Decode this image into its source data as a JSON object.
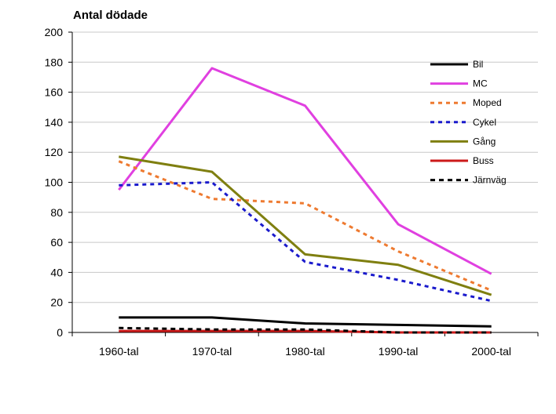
{
  "chart_data": {
    "type": "line",
    "ylabel": "Antal dödade",
    "xlabel": "",
    "categories": [
      "1960-tal",
      "1970-tal",
      "1980-tal",
      "1990-tal",
      "2000-tal"
    ],
    "ylim": [
      0,
      200
    ],
    "yticks": [
      0,
      20,
      40,
      60,
      80,
      100,
      120,
      140,
      160,
      180,
      200
    ],
    "grid": "horizontal",
    "legend_position": "right",
    "series": [
      {
        "name": "Bil",
        "values": [
          10,
          10,
          6,
          5,
          4
        ],
        "color": "#000000",
        "style": "solid"
      },
      {
        "name": "MC",
        "values": [
          95,
          176,
          151,
          72,
          39
        ],
        "color": "#e040e0",
        "style": "solid"
      },
      {
        "name": "Moped",
        "values": [
          114,
          89,
          86,
          54,
          28
        ],
        "color": "#ee7a30",
        "style": "dashed"
      },
      {
        "name": "Cykel",
        "values": [
          98,
          100,
          47,
          35,
          21
        ],
        "color": "#1a1acc",
        "style": "dashed"
      },
      {
        "name": "Gång",
        "values": [
          117,
          107,
          52,
          45,
          25
        ],
        "color": "#7f7f10",
        "style": "solid"
      },
      {
        "name": "Buss",
        "values": [
          1,
          1,
          1,
          0,
          0
        ],
        "color": "#cc1a1a",
        "style": "solid"
      },
      {
        "name": "Järnväg",
        "values": [
          3,
          2,
          2,
          0,
          0
        ],
        "color": "#000000",
        "style": "dashed"
      }
    ]
  }
}
